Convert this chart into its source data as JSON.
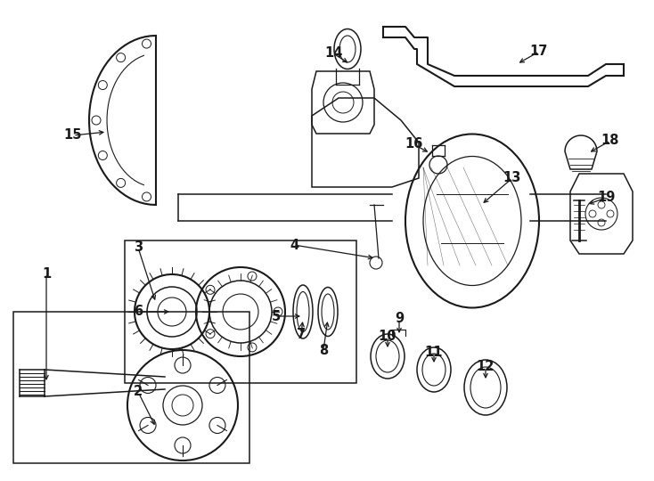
{
  "background_color": "#ffffff",
  "line_color": "#1a1a1a",
  "label_fontsize": 10.5,
  "fig_width": 7.34,
  "fig_height": 5.4,
  "dpi": 100
}
